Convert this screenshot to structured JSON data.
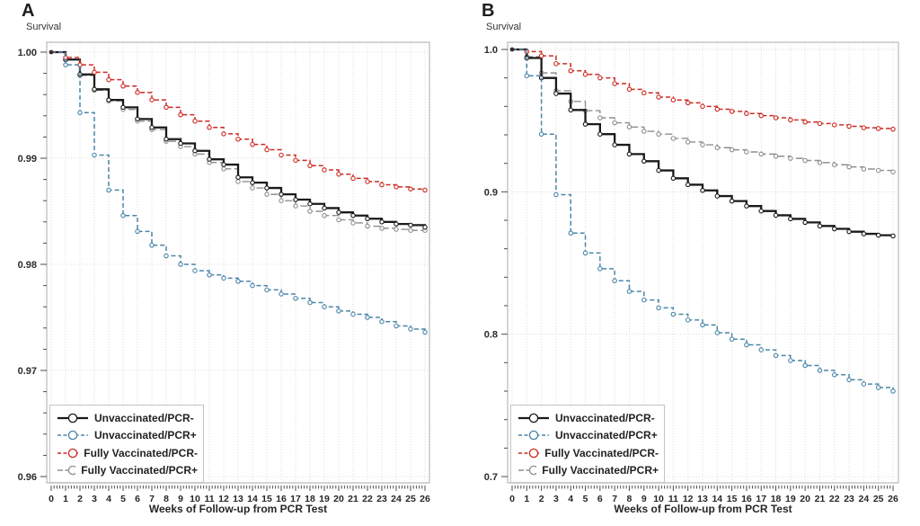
{
  "style": {
    "background": "#ffffff",
    "grid_color": "#dcdcdc",
    "frame_color": "#ababab",
    "tick_color": "#4d4d4d",
    "text_color": "#262626",
    "origin_dot_color": "#3c2a2a"
  },
  "chart_data": [
    {
      "type": "line",
      "subtype": "kaplan-meier-step",
      "title": "A",
      "ylabel": "Survival",
      "xlabel": "Weeks of Follow-up from PCR Test",
      "xlim": [
        0,
        26
      ],
      "xticks": [
        0,
        1,
        2,
        3,
        4,
        5,
        6,
        7,
        8,
        9,
        10,
        11,
        12,
        13,
        14,
        15,
        16,
        17,
        18,
        19,
        20,
        21,
        22,
        23,
        24,
        25,
        26
      ],
      "ylim": [
        0.96,
        1.0
      ],
      "ytick_values": [
        1.0,
        0.99,
        0.98,
        0.97,
        0.96
      ],
      "ytick_labels": [
        "1.00",
        "0.99",
        "0.98",
        "0.97",
        "0.96"
      ],
      "y_minor_per_major": 4,
      "x_minor_per_major": 4,
      "grid": "on",
      "legend_position": "bottom-left",
      "series": [
        {
          "name": "Unvaccinated/PCR-",
          "color": "#1a1a1a",
          "line": "solid",
          "marker": "open-circle",
          "values": [
            1.0,
            0.9993,
            0.9979,
            0.9965,
            0.9955,
            0.9948,
            0.9937,
            0.9929,
            0.9918,
            0.9914,
            0.9907,
            0.9899,
            0.9894,
            0.9882,
            0.9877,
            0.9872,
            0.9866,
            0.9861,
            0.9857,
            0.9853,
            0.9849,
            0.9846,
            0.9843,
            0.984,
            0.9838,
            0.9837,
            0.9835
          ]
        },
        {
          "name": "Unvaccinated/PCR+",
          "color": "#4a86a8",
          "line": "dashed",
          "marker": "open-circle",
          "values": [
            1.0,
            0.9988,
            0.9943,
            0.9903,
            0.987,
            0.9846,
            0.9831,
            0.9818,
            0.9808,
            0.98,
            0.9794,
            0.979,
            0.9787,
            0.9784,
            0.978,
            0.9776,
            0.9772,
            0.9768,
            0.9764,
            0.976,
            0.9756,
            0.9753,
            0.975,
            0.9746,
            0.9742,
            0.9739,
            0.9736
          ]
        },
        {
          "name": "Fully Vaccinated/PCR-",
          "color": "#cc2b24",
          "line": "dashed",
          "marker": "open-circle",
          "values": [
            1.0,
            0.9995,
            0.9988,
            0.9981,
            0.9974,
            0.9968,
            0.9962,
            0.9955,
            0.9948,
            0.9941,
            0.9935,
            0.9929,
            0.9923,
            0.9918,
            0.9913,
            0.9908,
            0.9903,
            0.9898,
            0.9893,
            0.9889,
            0.9885,
            0.9881,
            0.9878,
            0.9875,
            0.9873,
            0.9871,
            0.987
          ]
        },
        {
          "name": "Fully Vaccinated/PCR+",
          "color": "#8f8f8f",
          "line": "long-dashed",
          "marker": "open-circle",
          "values": [
            1.0,
            0.9993,
            0.9978,
            0.9964,
            0.9954,
            0.9946,
            0.9935,
            0.9927,
            0.9916,
            0.9911,
            0.9904,
            0.9896,
            0.989,
            0.9878,
            0.9872,
            0.9866,
            0.986,
            0.9855,
            0.985,
            0.9846,
            0.9842,
            0.9839,
            0.9836,
            0.9834,
            0.9833,
            0.9832,
            0.9832
          ]
        }
      ]
    },
    {
      "type": "line",
      "subtype": "kaplan-meier-step",
      "title": "B",
      "ylabel": "Survival",
      "xlabel": "Weeks of Follow-up from PCR Test",
      "xlim": [
        0,
        26
      ],
      "xticks": [
        0,
        1,
        2,
        3,
        4,
        5,
        6,
        7,
        8,
        9,
        10,
        11,
        12,
        13,
        14,
        15,
        16,
        17,
        18,
        19,
        20,
        21,
        22,
        23,
        24,
        25,
        26
      ],
      "ylim": [
        0.7,
        1.0
      ],
      "ytick_values": [
        1.0,
        0.9,
        0.8,
        0.7
      ],
      "ytick_labels": [
        "1.0",
        "0.9",
        "0.8",
        "0.7"
      ],
      "y_minor_per_major": 4,
      "x_minor_per_major": 4,
      "grid": "on",
      "legend_position": "bottom-left",
      "series": [
        {
          "name": "Unvaccinated/PCR-",
          "color": "#1a1a1a",
          "line": "solid",
          "marker": "open-circle",
          "values": [
            1.0,
            0.994,
            0.98,
            0.969,
            0.9575,
            0.9475,
            0.9405,
            0.933,
            0.9265,
            0.9215,
            0.915,
            0.9095,
            0.905,
            0.901,
            0.897,
            0.8935,
            0.89,
            0.8865,
            0.8835,
            0.881,
            0.8785,
            0.876,
            0.874,
            0.872,
            0.8705,
            0.8695,
            0.869
          ]
        },
        {
          "name": "Unvaccinated/PCR+",
          "color": "#4a86a8",
          "line": "dashed",
          "marker": "open-circle",
          "values": [
            1.0,
            0.9815,
            0.9405,
            0.898,
            0.871,
            0.857,
            0.846,
            0.8375,
            0.83,
            0.824,
            0.8185,
            0.814,
            0.81,
            0.8065,
            0.801,
            0.7965,
            0.7925,
            0.789,
            0.785,
            0.7815,
            0.778,
            0.7745,
            0.7715,
            0.768,
            0.765,
            0.7625,
            0.76
          ]
        },
        {
          "name": "Fully Vaccinated/PCR-",
          "color": "#cc2b24",
          "line": "dashed",
          "marker": "open-circle",
          "values": [
            1.0,
            0.9985,
            0.9955,
            0.99,
            0.985,
            0.9825,
            0.98,
            0.976,
            0.972,
            0.9695,
            0.9665,
            0.9645,
            0.9625,
            0.96,
            0.958,
            0.9565,
            0.955,
            0.9535,
            0.952,
            0.9505,
            0.949,
            0.948,
            0.947,
            0.946,
            0.945,
            0.9445,
            0.944
          ]
        },
        {
          "name": "Fully Vaccinated/PCR+",
          "color": "#8f8f8f",
          "line": "long-dashed",
          "marker": "open-circle",
          "values": [
            1.0,
            0.995,
            0.9835,
            0.971,
            0.9635,
            0.957,
            0.952,
            0.9485,
            0.9455,
            0.9425,
            0.9405,
            0.9375,
            0.935,
            0.933,
            0.931,
            0.9295,
            0.928,
            0.9265,
            0.925,
            0.9235,
            0.922,
            0.9205,
            0.919,
            0.9175,
            0.916,
            0.915,
            0.914
          ]
        }
      ]
    }
  ]
}
